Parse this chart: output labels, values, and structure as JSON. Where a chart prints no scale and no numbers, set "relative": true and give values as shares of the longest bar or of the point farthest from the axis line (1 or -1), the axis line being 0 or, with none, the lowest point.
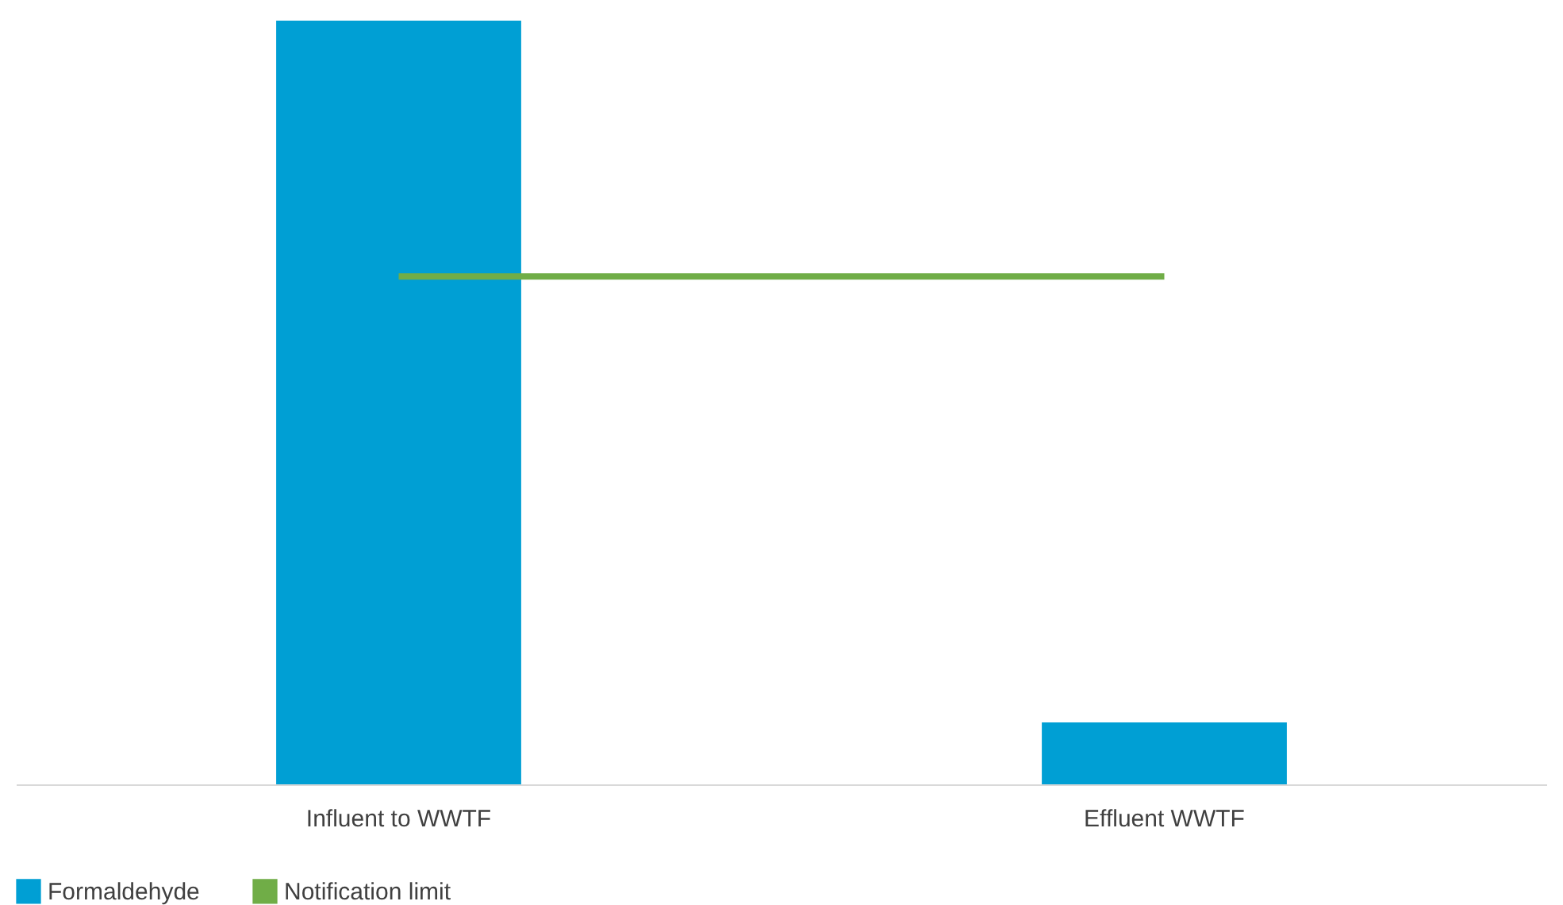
{
  "chart_data": {
    "type": "bar",
    "relative": true,
    "categories": [
      "Influent to WWTF",
      "Effluent WWTF"
    ],
    "legend": "bottom",
    "grid": false,
    "series": [
      {
        "name": "Formaldehyde",
        "color": "#009fd4",
        "values": [
          1,
          0.081
        ]
      },
      {
        "name": "Notification limit",
        "type": "line",
        "color": "#70ad47",
        "values": [
          0.665,
          0.665
        ]
      }
    ]
  }
}
